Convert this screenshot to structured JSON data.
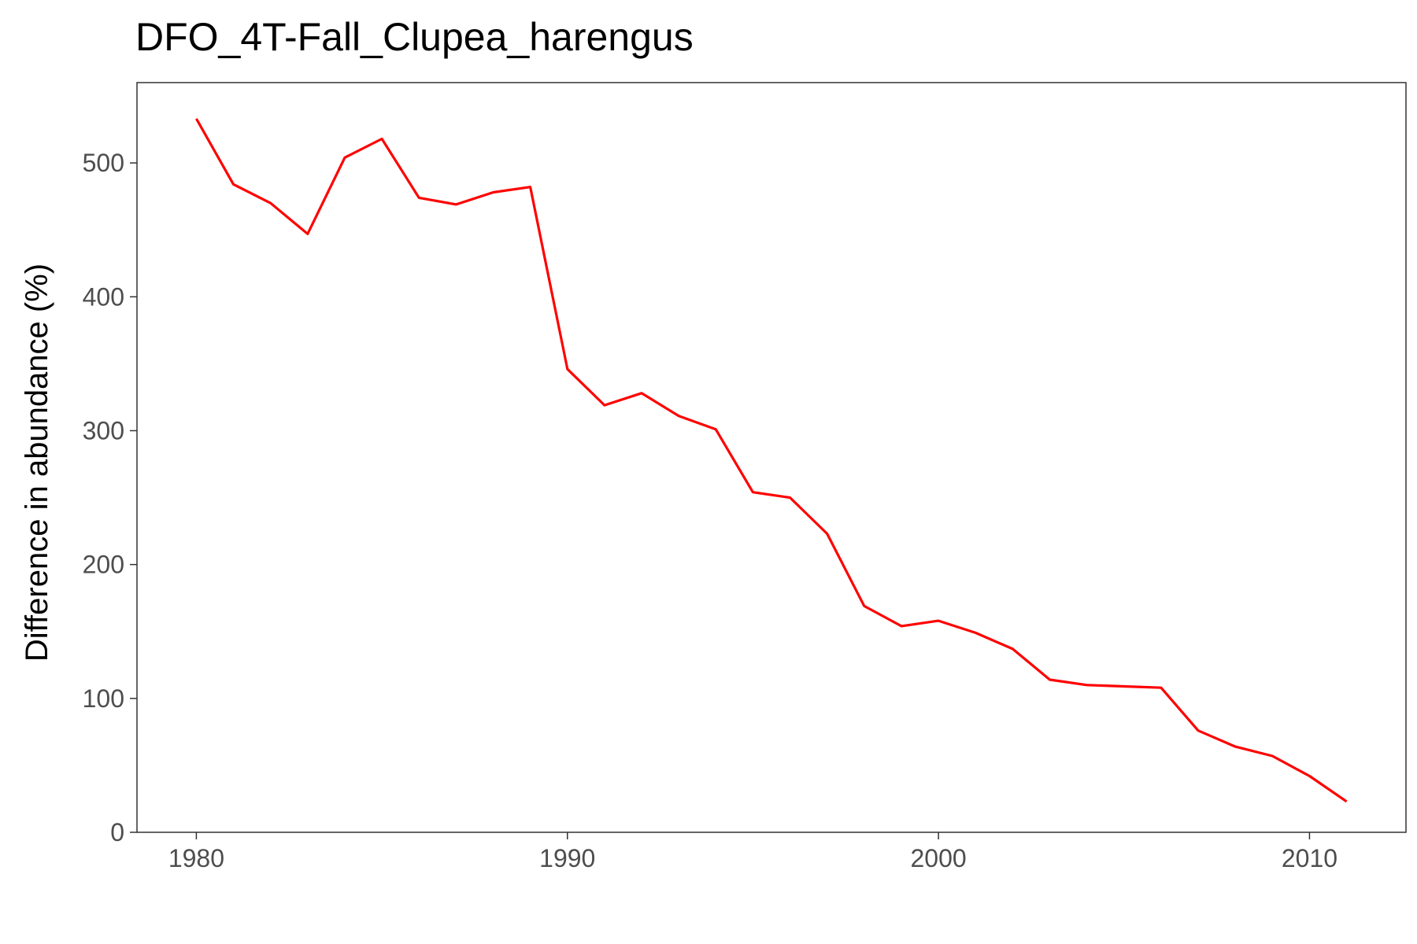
{
  "chart_data": {
    "type": "line",
    "title": "DFO_4T-Fall_Clupea_harengus",
    "xlabel": "",
    "ylabel": "Difference in abundance (%)",
    "xlim": [
      1978.4,
      2012.6
    ],
    "ylim": [
      0,
      560
    ],
    "xticks": [
      1980,
      1990,
      2000,
      2010
    ],
    "yticks": [
      0,
      100,
      200,
      300,
      400,
      500
    ],
    "grid": false,
    "legend": "none",
    "series": [
      {
        "color": "#ff0000",
        "x": [
          1980,
          1981,
          1982,
          1983,
          1984,
          1985,
          1986,
          1987,
          1988,
          1989,
          1990,
          1991,
          1992,
          1993,
          1994,
          1995,
          1996,
          1997,
          1998,
          1999,
          2000,
          2001,
          2002,
          2003,
          2004,
          2005,
          2006,
          2007,
          2008,
          2009,
          2010,
          2011
        ],
        "y": [
          533,
          484,
          470,
          447,
          504,
          518,
          474,
          469,
          478,
          482,
          346,
          319,
          328,
          311,
          301,
          254,
          250,
          223,
          169,
          154,
          158,
          149,
          137,
          114,
          110,
          109,
          108,
          76,
          64,
          57,
          42,
          23
        ]
      }
    ]
  }
}
